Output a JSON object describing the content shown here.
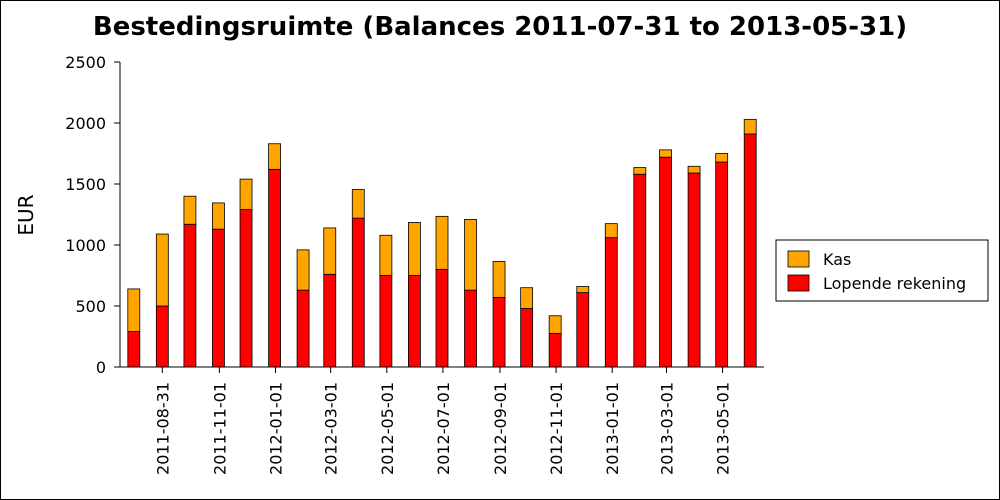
{
  "chart_data": {
    "type": "bar",
    "stacked": true,
    "title": "Bestedingsruimte (Balances 2011-07-31 to 2013-05-31)",
    "xlabel": "",
    "ylabel": "EUR",
    "ylim": [
      0,
      2500
    ],
    "yticks": [
      0,
      500,
      1000,
      1500,
      2000,
      2500
    ],
    "grid": false,
    "legend_position": "right",
    "x_range": [
      "2011-07-31",
      "2013-05-31"
    ],
    "x_tick_labels": [
      "2011-08-31",
      "2011-11-01",
      "2012-01-01",
      "2012-03-01",
      "2012-05-01",
      "2012-07-01",
      "2012-09-01",
      "2012-11-01",
      "2013-01-01",
      "2013-03-01",
      "2013-05-01"
    ],
    "categories": [
      "2011-07-31",
      "2011-08-31",
      "2011-09-30",
      "2011-10-31",
      "2011-11-30",
      "2011-12-31",
      "2012-01-31",
      "2012-02-29",
      "2012-03-31",
      "2012-04-30",
      "2012-05-31",
      "2012-06-30",
      "2012-07-31",
      "2012-08-31",
      "2012-09-30",
      "2012-10-31",
      "2012-11-30",
      "2012-12-31",
      "2013-01-31",
      "2013-02-28",
      "2013-03-31",
      "2013-04-30",
      "2013-05-31"
    ],
    "series": [
      {
        "name": "Lopende rekening",
        "color": "#ff0000",
        "values": [
          290,
          500,
          1170,
          1130,
          1290,
          1620,
          630,
          760,
          1220,
          750,
          750,
          800,
          630,
          570,
          480,
          275,
          610,
          1060,
          1580,
          1720,
          1590,
          1680,
          1910
        ]
      },
      {
        "name": "Kas",
        "color": "#ffa500",
        "values": [
          350,
          590,
          230,
          215,
          250,
          210,
          330,
          380,
          235,
          330,
          435,
          435,
          580,
          295,
          170,
          145,
          50,
          115,
          55,
          60,
          55,
          70,
          120
        ]
      }
    ]
  }
}
